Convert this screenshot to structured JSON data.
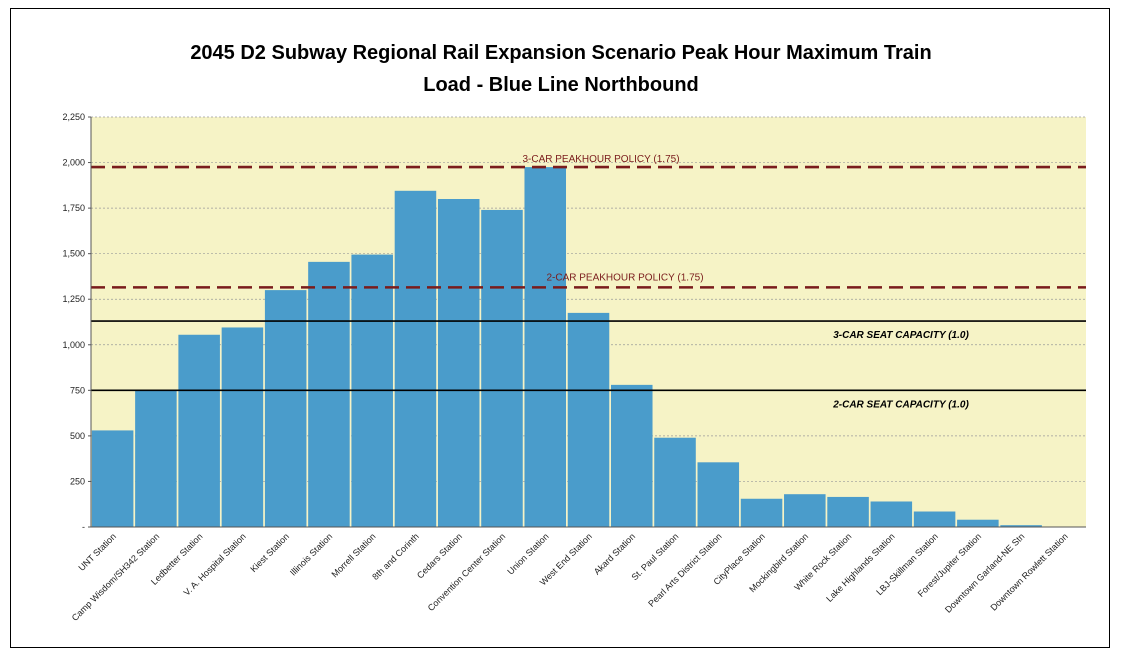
{
  "chart_data": {
    "type": "bar",
    "title_lines": [
      "2045 D2 Subway Regional  Rail Expansion Scenario Peak Hour Maximum Train",
      "Load - Blue Line Northbound"
    ],
    "xlabel": "",
    "ylabel": "",
    "ylim": [
      0,
      2250
    ],
    "yticks": [
      0,
      250,
      500,
      750,
      1000,
      1250,
      1500,
      1750,
      2000,
      2250
    ],
    "ytick_labels": [
      "-",
      "250",
      "500",
      "750",
      "1,000",
      "1,250",
      "1,500",
      "1,750",
      "2,000",
      "2,250"
    ],
    "grid": true,
    "legend": "none",
    "bar_color": "#4a9ccb",
    "plot_background": "#f6f3c6",
    "categories": [
      "UNT Station",
      "Camp Wisdom/SH342 Station",
      "Ledbetter Station",
      "V. A. Hospital Station",
      "Kiest Station",
      "Illinois Station",
      "Morrell Station",
      "8th and Corinth",
      "Cedars Station",
      "Convention Center Station",
      "Union Station",
      "West End Station",
      "Akard Station",
      "St. Paul Station",
      "Pearl Arts District Station",
      "CityPlace Station",
      "Mockingbird Station",
      "White Rock Station",
      "Lake Highlands Station",
      "LBJ-Skillman Station",
      "Forest/Jupiter Station",
      "Downtown Garland-NE Stn",
      "Downtown Rowlett Station"
    ],
    "values": [
      530,
      750,
      1055,
      1095,
      1300,
      1455,
      1495,
      1845,
      1800,
      1740,
      1975,
      1175,
      780,
      490,
      355,
      155,
      180,
      165,
      140,
      85,
      40,
      10,
      0
    ],
    "reference_lines": [
      {
        "label": "3-CAR PEAKHOUR POLICY (1.75)",
        "value": 1975,
        "style": "dashed",
        "color": "#7a1c1c"
      },
      {
        "label": "2-CAR PEAKHOUR POLICY (1.75)",
        "value": 1315,
        "style": "dashed",
        "color": "#7a1c1c"
      },
      {
        "label": "3-CAR SEAT CAPACITY (1.0)",
        "value": 1130,
        "style": "solid",
        "color": "#000000"
      },
      {
        "label": "2-CAR SEAT CAPACITY (1.0)",
        "value": 750,
        "style": "solid",
        "color": "#000000"
      }
    ]
  }
}
